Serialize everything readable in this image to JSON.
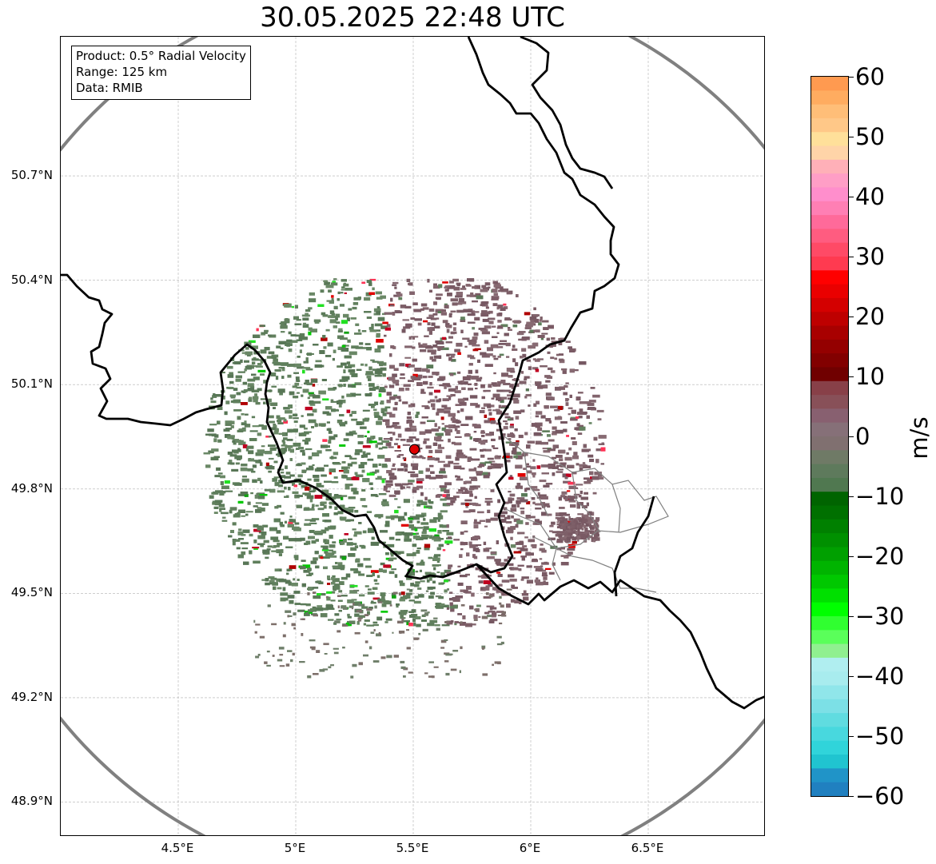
{
  "title": "30.05.2025 22:48 UTC",
  "info_box": {
    "product": "Product: 0.5° Radial Velocity",
    "range": "Range: 125 km",
    "data": "Data: RMIB"
  },
  "map": {
    "lon_range": [
      4.0,
      7.0
    ],
    "lat_range": [
      48.8,
      51.1
    ],
    "lat_ticks": [
      "50.7°N",
      "50.4°N",
      "50.1°N",
      "49.8°N",
      "49.5°N",
      "49.2°N",
      "48.9°N"
    ],
    "lat_values": [
      50.7,
      50.4,
      50.1,
      49.8,
      49.5,
      49.2,
      48.9
    ],
    "lon_ticks": [
      "4.5°E",
      "5°E",
      "5.5°E",
      "6°E",
      "6.5°E"
    ],
    "lon_values": [
      4.5,
      5.0,
      5.5,
      6.0,
      6.5
    ],
    "radar_site": {
      "lon": 5.505,
      "lat": 49.914
    },
    "colors": {
      "border": "#000000",
      "province_border": "#808080",
      "range_ring": "#808080",
      "grid": "#b0b0b0",
      "radar_marker": "#e00000"
    }
  },
  "colorbar": {
    "label": "m/s",
    "ticks": [
      "60",
      "50",
      "40",
      "30",
      "20",
      "10",
      "0",
      "−10",
      "−20",
      "−30",
      "−40",
      "−50",
      "−60"
    ],
    "tick_values": [
      60,
      50,
      40,
      30,
      20,
      10,
      0,
      -10,
      -20,
      -30,
      -40,
      -50,
      -60
    ],
    "range": [
      -60,
      60
    ]
  }
}
